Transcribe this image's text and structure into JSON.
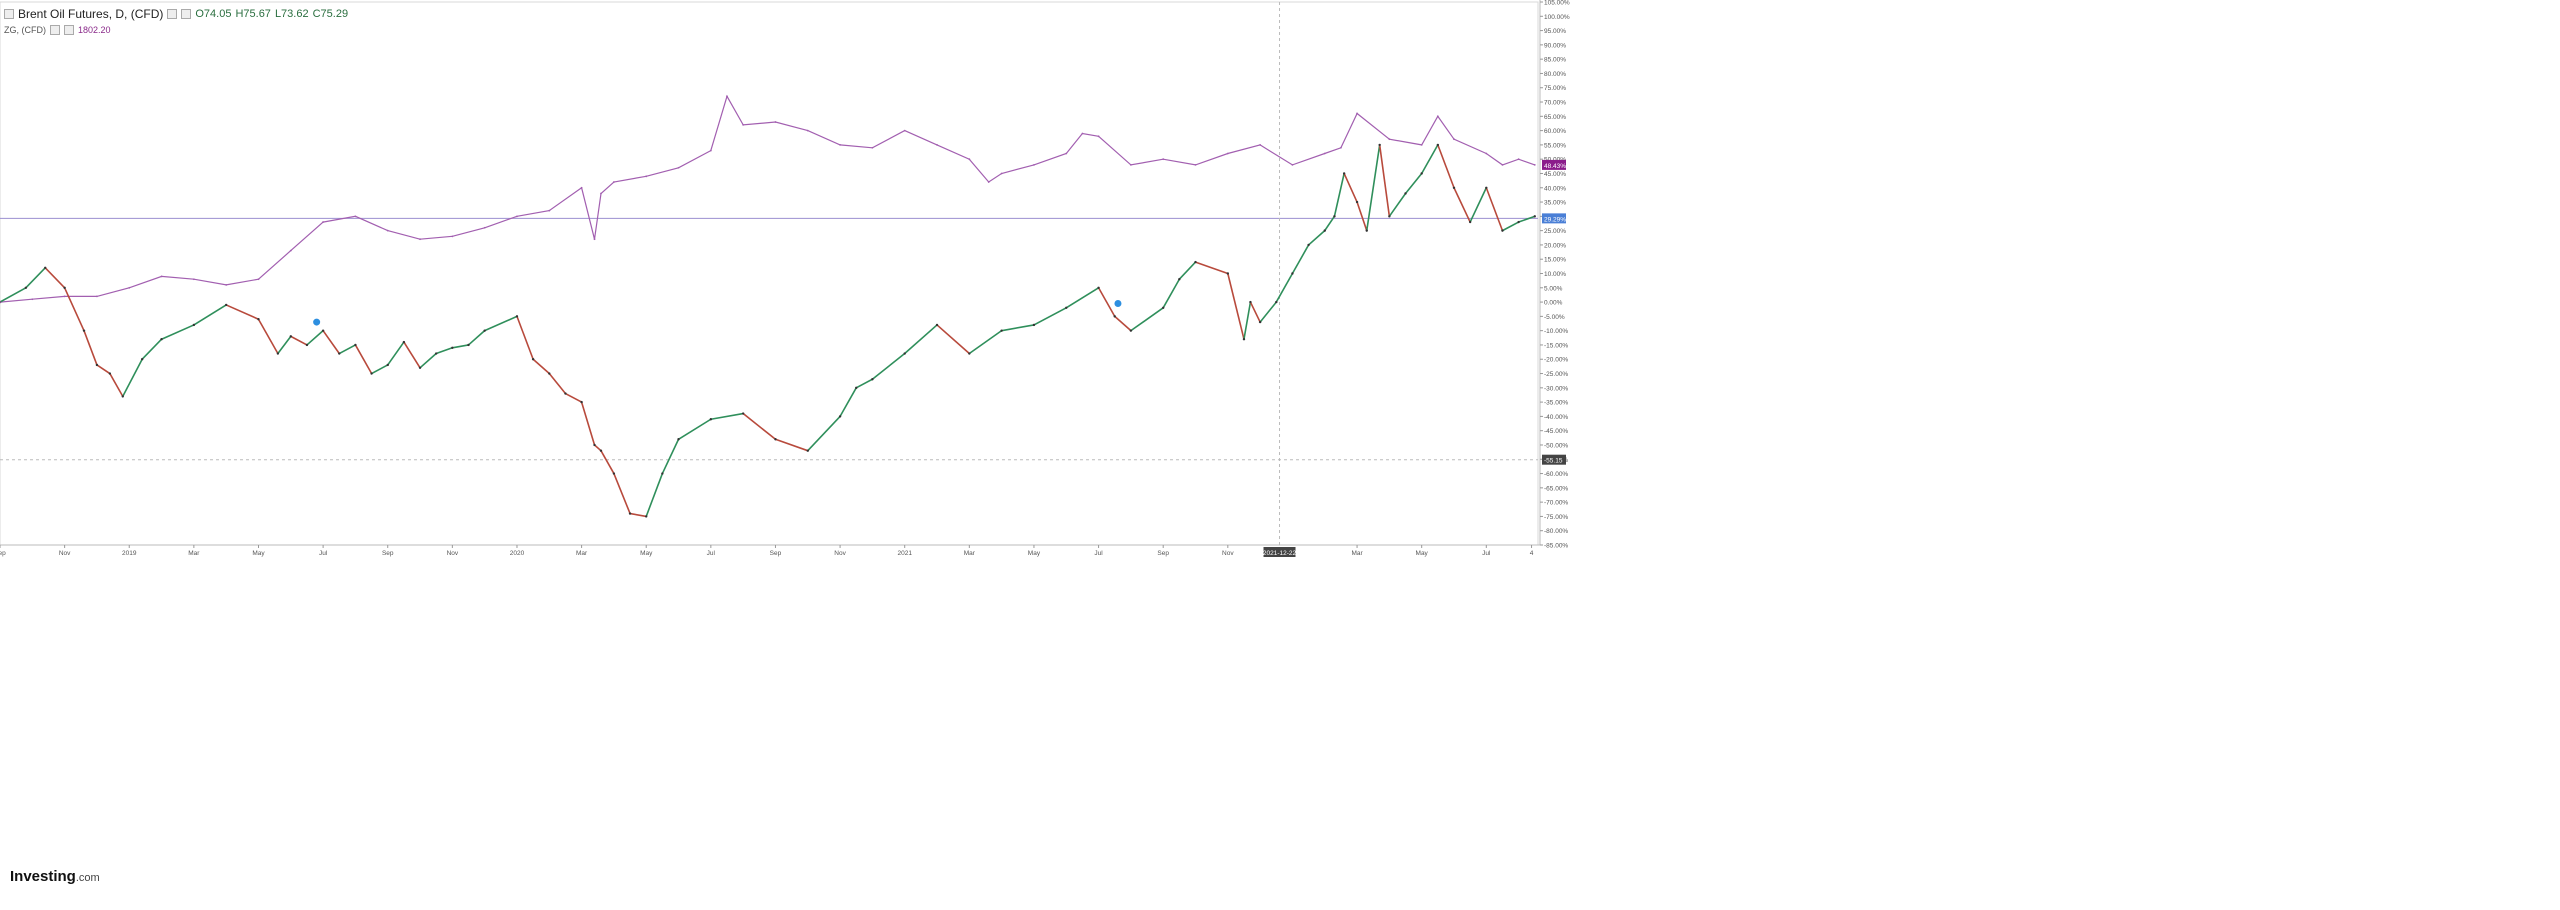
{
  "legend": {
    "instrument": "Brent Oil Futures, D, (CFD)",
    "open": "O74.05",
    "high": "H75.67",
    "low": "L73.62",
    "close": "C75.29",
    "compare_symbol": "ZG, (CFD)",
    "compare_value": "1802.20"
  },
  "logo": {
    "brand": "Investing",
    "suffix": ".com"
  },
  "chart_data": {
    "type": "line",
    "xlabel": "",
    "ylabel": "",
    "ylim": [
      -85,
      105
    ],
    "y_ticks": [
      "105.00%",
      "100.00%",
      "95.00%",
      "90.00%",
      "85.00%",
      "80.00%",
      "75.00%",
      "70.00%",
      "65.00%",
      "60.00%",
      "55.00%",
      "50.00%",
      "45.00%",
      "40.00%",
      "35.00%",
      "30.00%",
      "25.00%",
      "20.00%",
      "15.00%",
      "10.00%",
      "5.00%",
      "0.00%",
      "-5.00%",
      "-10.00%",
      "-15.00%",
      "-20.00%",
      "-25.00%",
      "-30.00%",
      "-35.00%",
      "-40.00%",
      "-45.00%",
      "-50.00%",
      "-55.00%",
      "-60.00%",
      "-65.00%",
      "-70.00%",
      "-75.00%",
      "-80.00%",
      "-85.00%"
    ],
    "x_ticks": [
      "Sep",
      "Nov",
      "2019",
      "Mar",
      "May",
      "Jul",
      "Sep",
      "Nov",
      "2020",
      "Mar",
      "May",
      "Jul",
      "Sep",
      "Nov",
      "2021",
      "Mar",
      "May",
      "Jul",
      "Sep",
      "Nov",
      "2021-12-22",
      "Mar",
      "May",
      "Jul",
      "4"
    ],
    "x_tick_idx": [
      0,
      2,
      4,
      6,
      8,
      10,
      12,
      14,
      16,
      18,
      20,
      22,
      24,
      26,
      28,
      30,
      32,
      34,
      36,
      38,
      39.6,
      42,
      44,
      46,
      47.4
    ],
    "x_max": 47.6,
    "crosshair_x_label": "2021-12-22",
    "crosshair_y_label": "-55.15",
    "crosshair_x": 39.6,
    "crosshair_y": -55.15,
    "reference_line": 29.29,
    "labels": {
      "ZG": "48.43%",
      "Brent": "29.29%"
    },
    "colors": {
      "ZG": "#a25fb0",
      "up": "#2f8f5b",
      "down": "#b84a3c",
      "price_tag": "#4a7fd6",
      "zg_tag": "#8b1d8b",
      "crosshair": "#444444"
    },
    "series": [
      {
        "name": "ZG, (CFD)",
        "x": [
          0,
          1,
          2,
          3,
          4,
          5,
          6,
          7,
          8,
          9,
          10,
          11,
          12,
          13,
          14,
          15,
          16,
          17,
          18,
          18.4,
          18.6,
          19,
          20,
          21,
          22,
          22.5,
          23,
          24,
          25,
          26,
          27,
          28,
          29,
          30,
          30.6,
          31,
          32,
          33,
          33.5,
          34,
          35,
          36,
          37,
          38,
          39,
          40,
          41,
          41.5,
          42,
          43,
          44,
          44.5,
          45,
          46,
          46.5,
          47,
          47.5
        ],
        "values": [
          0,
          1,
          2,
          2,
          5,
          9,
          8,
          6,
          8,
          18,
          28,
          30,
          25,
          22,
          23,
          26,
          30,
          32,
          40,
          22,
          38,
          42,
          44,
          47,
          53,
          72,
          62,
          63,
          60,
          55,
          54,
          60,
          55,
          50,
          42,
          45,
          48,
          52,
          59,
          58,
          48,
          50,
          48,
          52,
          55,
          48,
          52,
          54,
          66,
          57,
          55,
          65,
          57,
          52,
          48,
          50,
          48
        ]
      },
      {
        "name": "Brent Oil Futures, D, (CFD)",
        "x": [
          0,
          0.8,
          1.4,
          2,
          2.6,
          3,
          3.4,
          3.8,
          4.4,
          5,
          6,
          7,
          8,
          8.6,
          9,
          9.5,
          10,
          10.5,
          11,
          11.5,
          12,
          12.5,
          13,
          13.5,
          14,
          14.5,
          15,
          16,
          16.5,
          17,
          17.5,
          18,
          18.4,
          18.6,
          19,
          19.5,
          20,
          20.5,
          21,
          22,
          23,
          24,
          25,
          26,
          26.5,
          27,
          28,
          29,
          30,
          31,
          32,
          33,
          34,
          34.5,
          35,
          36,
          36.5,
          37,
          38,
          38.5,
          38.7,
          39,
          39.5,
          40,
          40.5,
          41,
          41.3,
          41.6,
          42,
          42.3,
          42.7,
          43,
          43.5,
          44,
          44.5,
          45,
          45.5,
          46,
          46.5,
          47,
          47.5
        ],
        "values": [
          0,
          5,
          12,
          5,
          -10,
          -22,
          -25,
          -33,
          -20,
          -13,
          -8,
          -1,
          -6,
          -18,
          -12,
          -15,
          -10,
          -18,
          -15,
          -25,
          -22,
          -14,
          -23,
          -18,
          -16,
          -15,
          -10,
          -5,
          -20,
          -25,
          -32,
          -35,
          -50,
          -52,
          -60,
          -74,
          -75,
          -60,
          -48,
          -41,
          -39,
          -48,
          -52,
          -40,
          -30,
          -27,
          -18,
          -8,
          -18,
          -10,
          -8,
          -2,
          5,
          -5,
          -10,
          -2,
          8,
          14,
          10,
          -13,
          0,
          -7,
          0,
          10,
          20,
          25,
          30,
          45,
          35,
          25,
          55,
          30,
          38,
          45,
          55,
          40,
          28,
          40,
          25,
          28,
          30
        ]
      }
    ]
  }
}
